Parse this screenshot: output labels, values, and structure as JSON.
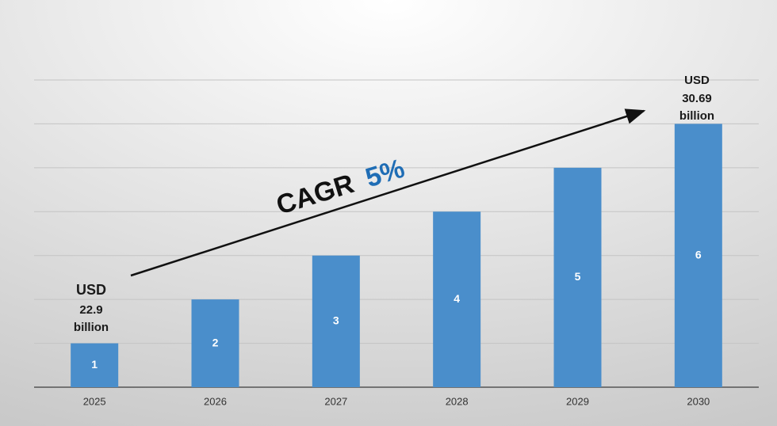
{
  "chart_data": {
    "type": "bar",
    "categories": [
      "2025",
      "2026",
      "2027",
      "2028",
      "2029",
      "2030"
    ],
    "values": [
      1,
      2,
      3,
      4,
      5,
      6
    ],
    "color": "#4a8ecb",
    "ylim": [
      0,
      7
    ],
    "yticks": [
      0,
      1,
      2,
      3,
      4,
      5,
      6,
      7
    ],
    "grid": true,
    "annotations": [
      {
        "lines": [
          "USD",
          "22.9",
          "billion"
        ]
      },
      {
        "lines": [
          "USD",
          "30.69",
          "billion"
        ]
      }
    ],
    "trend_label": {
      "text": "CAGR",
      "highlight": "5%"
    }
  }
}
